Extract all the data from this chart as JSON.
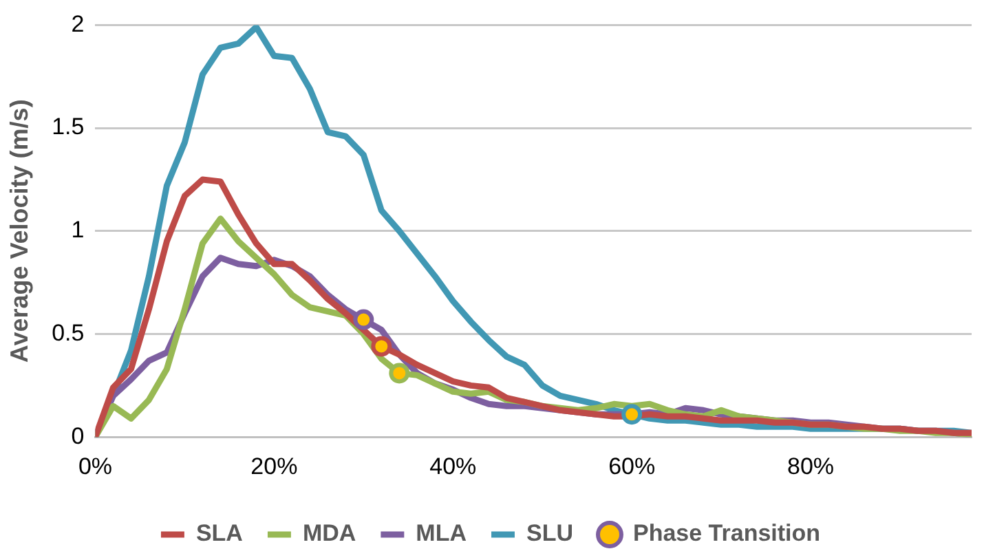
{
  "chart_data": {
    "type": "line",
    "ylabel": "Average Velocity (m/s)",
    "x": [
      0,
      2,
      4,
      6,
      8,
      10,
      12,
      14,
      16,
      18,
      20,
      22,
      24,
      26,
      28,
      30,
      32,
      34,
      36,
      38,
      40,
      42,
      44,
      46,
      48,
      50,
      52,
      54,
      56,
      58,
      60,
      62,
      64,
      66,
      68,
      70,
      72,
      74,
      76,
      78,
      80,
      82,
      84,
      86,
      88,
      90,
      92,
      94,
      96,
      98
    ],
    "xlim": [
      0,
      98
    ],
    "xticks": [
      {
        "value": 0,
        "label": "0%"
      },
      {
        "value": 20,
        "label": "20%"
      },
      {
        "value": 40,
        "label": "40%"
      },
      {
        "value": 60,
        "label": "60%"
      },
      {
        "value": 80,
        "label": "80%"
      }
    ],
    "ylim": [
      0,
      2
    ],
    "yticks": [
      0,
      0.5,
      1,
      1.5,
      2
    ],
    "grid": "y",
    "legend": "bottom",
    "marker": "none",
    "line_style": "solid",
    "series": [
      {
        "name": "SLA",
        "color": "#be4b48",
        "values": [
          0,
          0.24,
          0.33,
          0.62,
          0.95,
          1.17,
          1.25,
          1.24,
          1.08,
          0.94,
          0.84,
          0.84,
          0.76,
          0.67,
          0.6,
          0.52,
          0.44,
          0.4,
          0.35,
          0.31,
          0.27,
          0.25,
          0.24,
          0.19,
          0.17,
          0.15,
          0.13,
          0.12,
          0.11,
          0.1,
          0.1,
          0.11,
          0.1,
          0.1,
          0.09,
          0.08,
          0.08,
          0.08,
          0.07,
          0.07,
          0.06,
          0.06,
          0.05,
          0.05,
          0.04,
          0.04,
          0.03,
          0.03,
          0.02,
          0.02
        ]
      },
      {
        "name": "MDA",
        "color": "#98b954",
        "values": [
          0,
          0.15,
          0.09,
          0.18,
          0.33,
          0.62,
          0.94,
          1.06,
          0.95,
          0.87,
          0.79,
          0.69,
          0.63,
          0.61,
          0.59,
          0.5,
          0.38,
          0.31,
          0.3,
          0.26,
          0.22,
          0.21,
          0.22,
          0.18,
          0.17,
          0.15,
          0.14,
          0.13,
          0.14,
          0.16,
          0.15,
          0.16,
          0.13,
          0.11,
          0.1,
          0.13,
          0.1,
          0.09,
          0.08,
          0.07,
          0.06,
          0.06,
          0.05,
          0.04,
          0.04,
          0.03,
          0.03,
          0.02,
          0.02,
          0.01
        ]
      },
      {
        "name": "MLA",
        "color": "#7d5fa0",
        "values": [
          0,
          0.2,
          0.28,
          0.37,
          0.41,
          0.6,
          0.78,
          0.87,
          0.84,
          0.83,
          0.86,
          0.83,
          0.78,
          0.69,
          0.62,
          0.57,
          0.52,
          0.4,
          0.31,
          0.26,
          0.23,
          0.19,
          0.16,
          0.15,
          0.15,
          0.14,
          0.13,
          0.12,
          0.11,
          0.11,
          0.11,
          0.12,
          0.11,
          0.14,
          0.13,
          0.11,
          0.1,
          0.09,
          0.08,
          0.08,
          0.07,
          0.07,
          0.06,
          0.05,
          0.04,
          0.04,
          0.03,
          0.03,
          0.02,
          0.01
        ]
      },
      {
        "name": "SLU",
        "color": "#4198b4",
        "values": [
          0,
          0.2,
          0.42,
          0.78,
          1.22,
          1.43,
          1.76,
          1.89,
          1.91,
          1.99,
          1.85,
          1.84,
          1.69,
          1.48,
          1.46,
          1.37,
          1.1,
          1.0,
          0.89,
          0.78,
          0.66,
          0.56,
          0.47,
          0.39,
          0.35,
          0.25,
          0.2,
          0.18,
          0.16,
          0.13,
          0.11,
          0.09,
          0.08,
          0.08,
          0.07,
          0.06,
          0.06,
          0.05,
          0.05,
          0.05,
          0.04,
          0.04,
          0.04,
          0.04,
          0.04,
          0.04,
          0.03,
          0.03,
          0.03,
          0.02
        ]
      },
      {
        "name": "Phase Transition",
        "type": "scatter",
        "marker": "circle",
        "color": "#ffc000",
        "colors": [
          "#7d5fa0",
          "#be4b48",
          "#98b954",
          "#4198b4"
        ],
        "x": [
          30,
          32,
          34,
          60
        ],
        "values": [
          0.57,
          0.44,
          0.31,
          0.11
        ]
      }
    ]
  }
}
